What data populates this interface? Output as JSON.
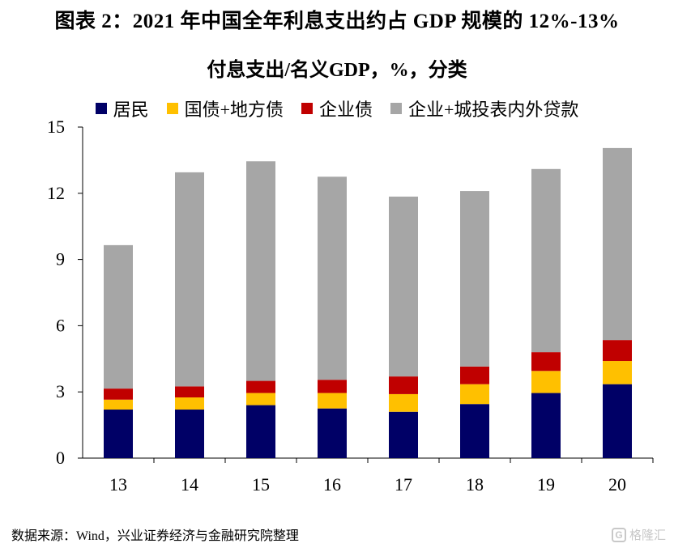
{
  "header": {
    "title": "图表 2：2021 年中国全年利息支出约占 GDP 规模的 12%-13%"
  },
  "footer": {
    "source": "数据来源：Wind，兴业证券经济与金融研究院整理",
    "watermark_text": "格隆汇",
    "watermark_icon": "g-logo-icon"
  },
  "chart_data": {
    "type": "bar",
    "stacked": true,
    "subtitle": "付息支出/名义GDP，%，分类",
    "categories": [
      "13",
      "14",
      "15",
      "16",
      "17",
      "18",
      "19",
      "20"
    ],
    "series": [
      {
        "name": "居民",
        "color": "#000066",
        "values": [
          2.2,
          2.2,
          2.4,
          2.25,
          2.1,
          2.45,
          2.95,
          3.35
        ]
      },
      {
        "name": "国债+地方债",
        "color": "#FFC000",
        "values": [
          0.45,
          0.55,
          0.55,
          0.7,
          0.8,
          0.9,
          1.0,
          1.05
        ]
      },
      {
        "name": "企业债",
        "color": "#C00000",
        "values": [
          0.5,
          0.5,
          0.55,
          0.6,
          0.8,
          0.8,
          0.85,
          0.95
        ]
      },
      {
        "name": "企业+城投表内外贷款",
        "color": "#A6A6A6",
        "values": [
          6.5,
          9.7,
          9.95,
          9.2,
          8.15,
          7.95,
          8.3,
          8.7
        ]
      }
    ],
    "ylim": [
      0,
      15
    ],
    "yticks": [
      0,
      3,
      6,
      9,
      12,
      15
    ],
    "legend_position": "top-center",
    "grid": false
  }
}
